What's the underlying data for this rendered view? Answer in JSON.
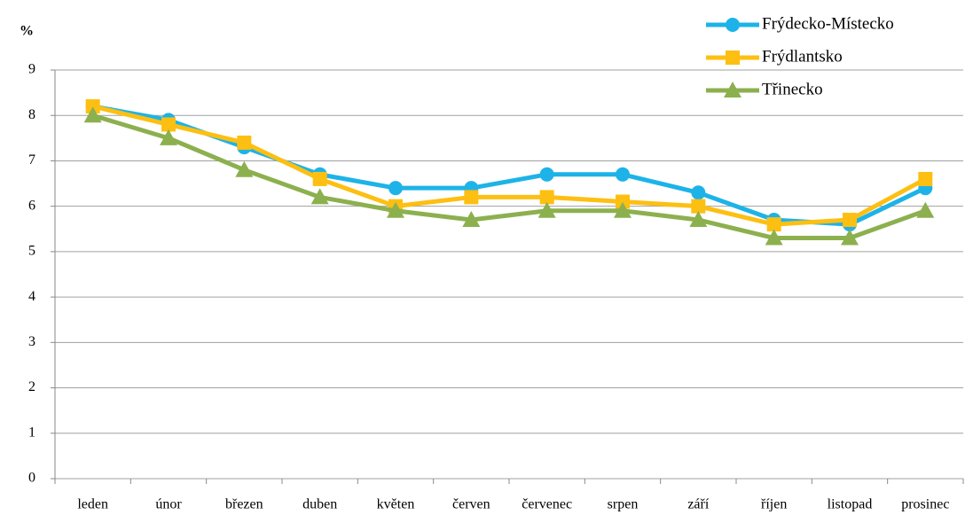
{
  "chart_data": {
    "type": "line",
    "y_label": "%",
    "categories": [
      "leden",
      "únor",
      "březen",
      "duben",
      "květen",
      "červen",
      "červenec",
      "srpen",
      "září",
      "říjen",
      "listopad",
      "prosinec"
    ],
    "series": [
      {
        "name": "Frýdecko-Místecko",
        "color": "#1db3e8",
        "marker": "circle",
        "values": [
          8.2,
          7.9,
          7.3,
          6.7,
          6.4,
          6.4,
          6.7,
          6.7,
          6.3,
          5.7,
          5.6,
          6.4
        ]
      },
      {
        "name": "Frýdlantsko",
        "color": "#fdbf12",
        "marker": "square",
        "values": [
          8.2,
          7.8,
          7.4,
          6.6,
          6.0,
          6.2,
          6.2,
          6.1,
          6.0,
          5.6,
          5.7,
          6.6
        ]
      },
      {
        "name": "Třinecko",
        "color": "#8cb04e",
        "marker": "triangle",
        "values": [
          8.0,
          7.5,
          6.8,
          6.2,
          5.9,
          5.7,
          5.9,
          5.9,
          5.7,
          5.3,
          5.3,
          5.9
        ]
      }
    ],
    "ylim": [
      0,
      9
    ],
    "yticks": [
      0,
      1,
      2,
      3,
      4,
      5,
      6,
      7,
      8,
      9
    ],
    "grid": true,
    "legend": "top-right"
  }
}
